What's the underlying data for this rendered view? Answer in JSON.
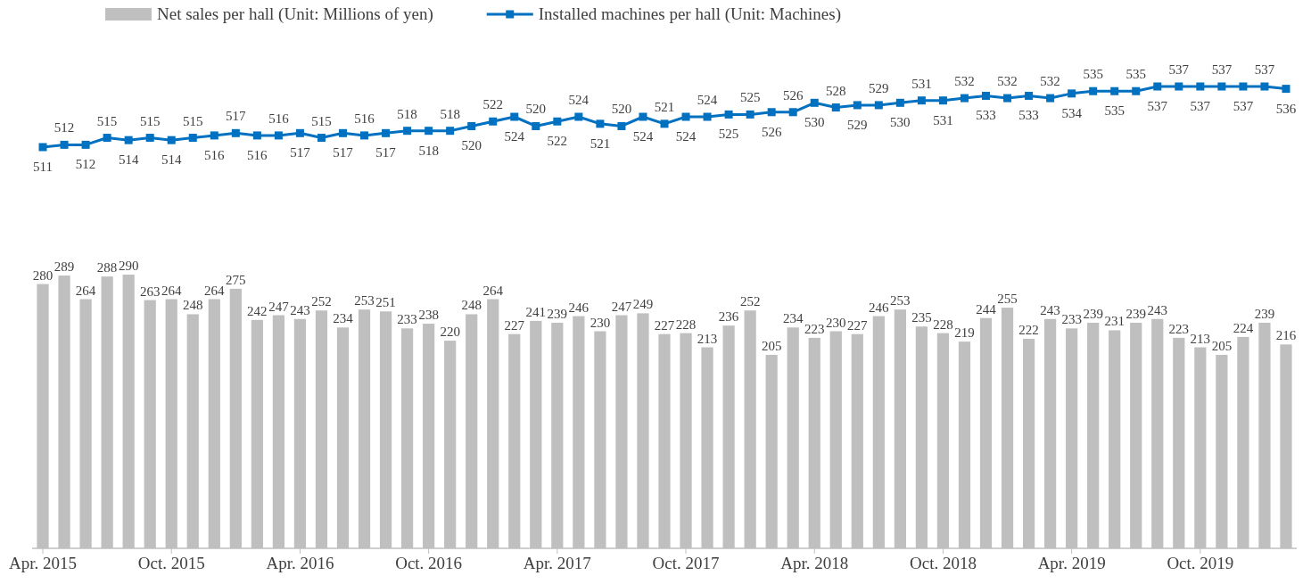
{
  "chart_data": [
    {
      "type": "line",
      "categories": [
        null,
        null,
        null,
        null,
        null,
        null,
        null,
        null,
        null,
        null,
        null,
        null,
        null,
        null,
        null,
        null,
        null,
        null,
        null,
        null,
        null,
        null,
        null,
        null,
        null,
        null,
        null,
        null,
        null,
        null,
        null,
        null,
        null,
        null,
        null,
        null,
        null,
        null,
        null,
        null,
        null,
        null,
        null,
        null,
        null,
        null,
        null,
        null,
        null,
        null,
        null,
        null,
        null,
        null,
        null,
        null,
        null,
        null,
        null
      ],
      "series": [
        {
          "name": "Installed machines per hall (Unit: Machines)",
          "color": "#0070c0",
          "values": [
            511,
            512,
            512,
            515,
            514,
            515,
            514,
            515,
            516,
            517,
            516,
            516,
            517,
            515,
            517,
            516,
            517,
            518,
            518,
            518,
            520,
            522,
            524,
            520,
            522,
            524,
            521,
            520,
            524,
            521,
            524,
            524,
            525,
            525,
            526,
            526,
            530,
            528,
            529,
            529,
            530,
            531,
            531,
            532,
            533,
            532,
            533,
            532,
            534,
            535,
            535,
            535,
            537,
            537,
            537,
            537,
            537,
            537,
            536
          ]
        }
      ],
      "data_labels": true,
      "legend": "top",
      "marker": "square",
      "line_style": "solid"
    },
    {
      "type": "bar",
      "categories": [
        "Apr. 2015",
        null,
        null,
        null,
        null,
        null,
        "Oct. 2015",
        null,
        null,
        null,
        null,
        null,
        "Apr. 2016",
        null,
        null,
        null,
        null,
        null,
        "Oct. 2016",
        null,
        null,
        null,
        null,
        null,
        "Apr. 2017",
        null,
        null,
        null,
        null,
        null,
        "Oct. 2017",
        null,
        null,
        null,
        null,
        null,
        "Apr. 2018",
        null,
        null,
        null,
        null,
        null,
        "Oct. 2018",
        null,
        null,
        null,
        null,
        null,
        "Apr. 2019",
        null,
        null,
        null,
        null,
        null,
        "Oct. 2019",
        null,
        null,
        null,
        null
      ],
      "series": [
        {
          "name": "Net sales per hall (Unit: Millions of yen)",
          "color": "#bfbfbf",
          "values": [
            280,
            289,
            264,
            288,
            290,
            263,
            264,
            248,
            264,
            275,
            242,
            247,
            243,
            252,
            234,
            253,
            251,
            233,
            238,
            220,
            248,
            264,
            227,
            241,
            239,
            246,
            230,
            247,
            249,
            227,
            228,
            213,
            236,
            252,
            205,
            234,
            223,
            230,
            227,
            246,
            253,
            235,
            228,
            219,
            244,
            255,
            222,
            243,
            233,
            239,
            231,
            239,
            243,
            223,
            213,
            205,
            224,
            239,
            216
          ]
        }
      ],
      "data_labels": true,
      "legend": "top",
      "tick_labels": "x"
    }
  ]
}
